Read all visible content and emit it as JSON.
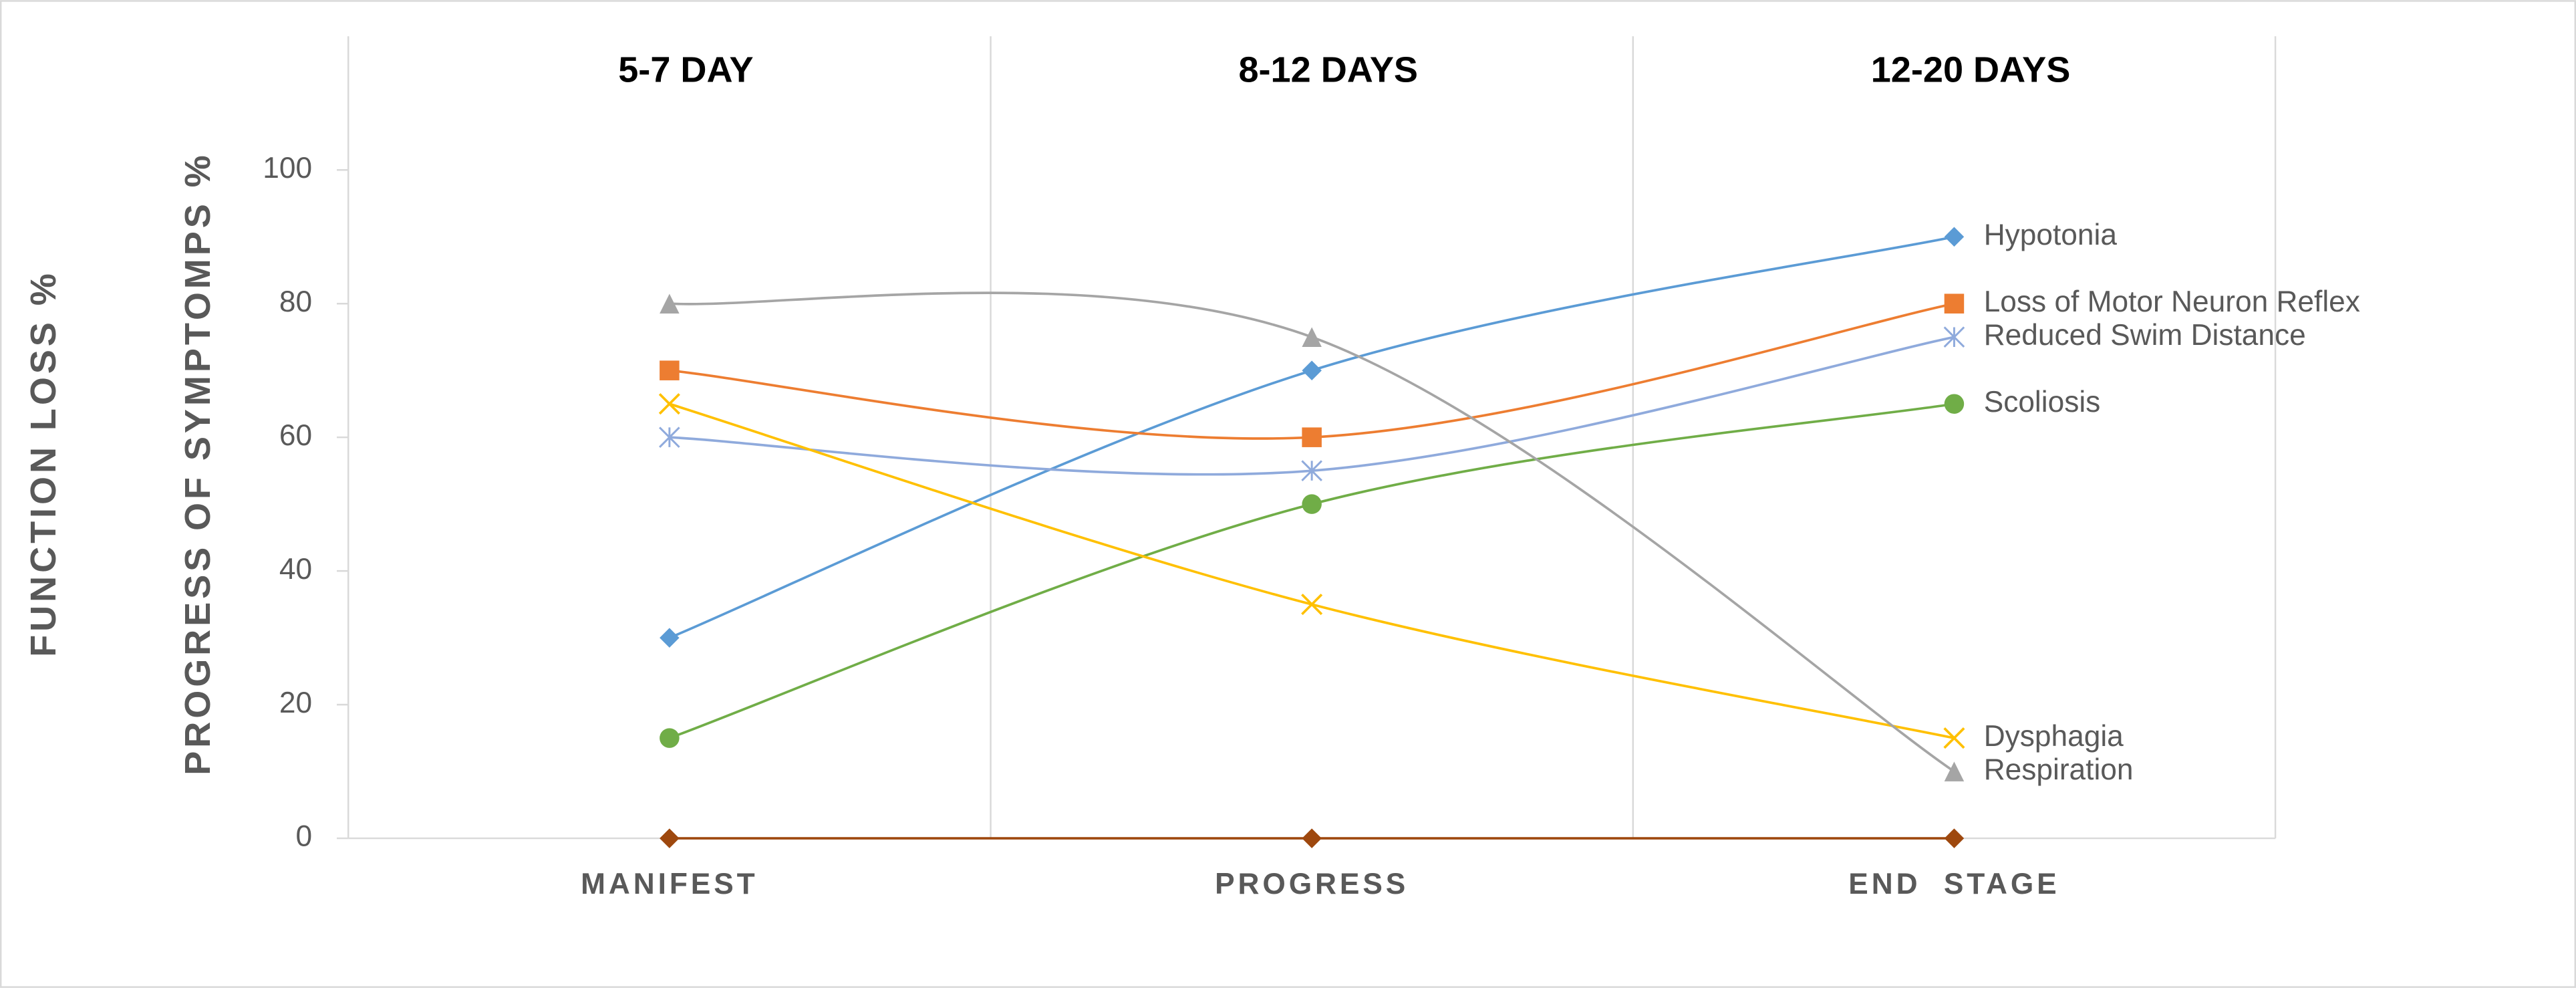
{
  "chart_data": {
    "type": "line",
    "y_label_outer": "FUNCTION LOSS %",
    "y_label": "PROGRESS OF SYMPTOMPS %",
    "period_labels": [
      "5-7 DAY",
      "8-12 DAYS",
      "12-20 DAYS"
    ],
    "categories": [
      "MANIFEST",
      "PROGRESS",
      "END  STAGE"
    ],
    "ylim": [
      0,
      120
    ],
    "yticks": [
      0,
      20,
      40,
      60,
      80,
      100
    ],
    "series": [
      {
        "name": "Hypotonia",
        "color": "#5b9bd5",
        "marker": "diamond",
        "values": [
          30,
          70,
          90
        ]
      },
      {
        "name": "Loss of Motor Neuron Reflex",
        "color": "#ed7d31",
        "marker": "square",
        "values": [
          70,
          60,
          80
        ]
      },
      {
        "name": "Reduced Swim Distance",
        "color": "#8faadc",
        "marker": "asterisk",
        "values": [
          60,
          55,
          75
        ]
      },
      {
        "name": "Scoliosis",
        "color": "#70ad47",
        "marker": "circle",
        "values": [
          15,
          50,
          65
        ]
      },
      {
        "name": "Dysphagia",
        "color": "#ffc000",
        "marker": "x",
        "values": [
          65,
          35,
          15
        ]
      },
      {
        "name": "Respiration",
        "color": "#a5a5a5",
        "marker": "triangle",
        "values": [
          80,
          75,
          10
        ]
      },
      {
        "color": "#9e480e",
        "marker": "diamond",
        "values": [
          0,
          0,
          0
        ]
      }
    ]
  }
}
